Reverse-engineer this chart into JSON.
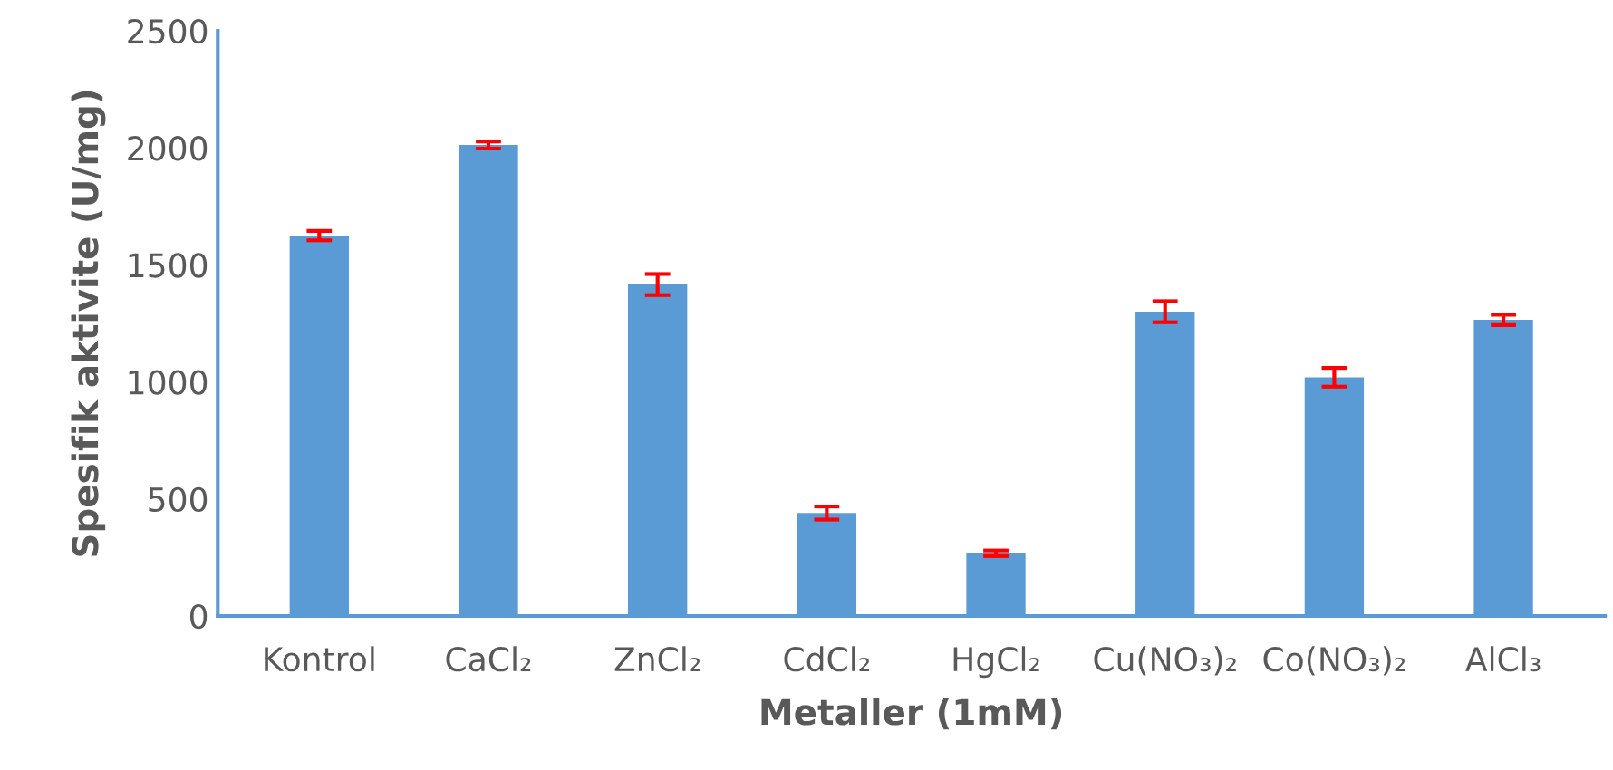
{
  "chart_data": {
    "type": "bar",
    "xlabel": "Metaller (1mM)",
    "ylabel": "Spesifik aktivite (U/mg)",
    "categories": [
      "Kontrol",
      "CaCl₂",
      "ZnCl₂",
      "CdCl₂",
      "HgCl₂",
      "Cu(NO₃)₂",
      "Co(NO₃)₂",
      "AlCl₃"
    ],
    "values": [
      1625,
      2012,
      1416,
      440,
      268,
      1300,
      1020,
      1265
    ],
    "errors": [
      20,
      15,
      45,
      28,
      12,
      45,
      40,
      22
    ],
    "color": "#5b9bd5",
    "ylim": [
      0,
      2500
    ],
    "yticks": [
      0,
      500,
      1000,
      1500,
      2000,
      2500
    ],
    "grid": false,
    "legend": false
  }
}
